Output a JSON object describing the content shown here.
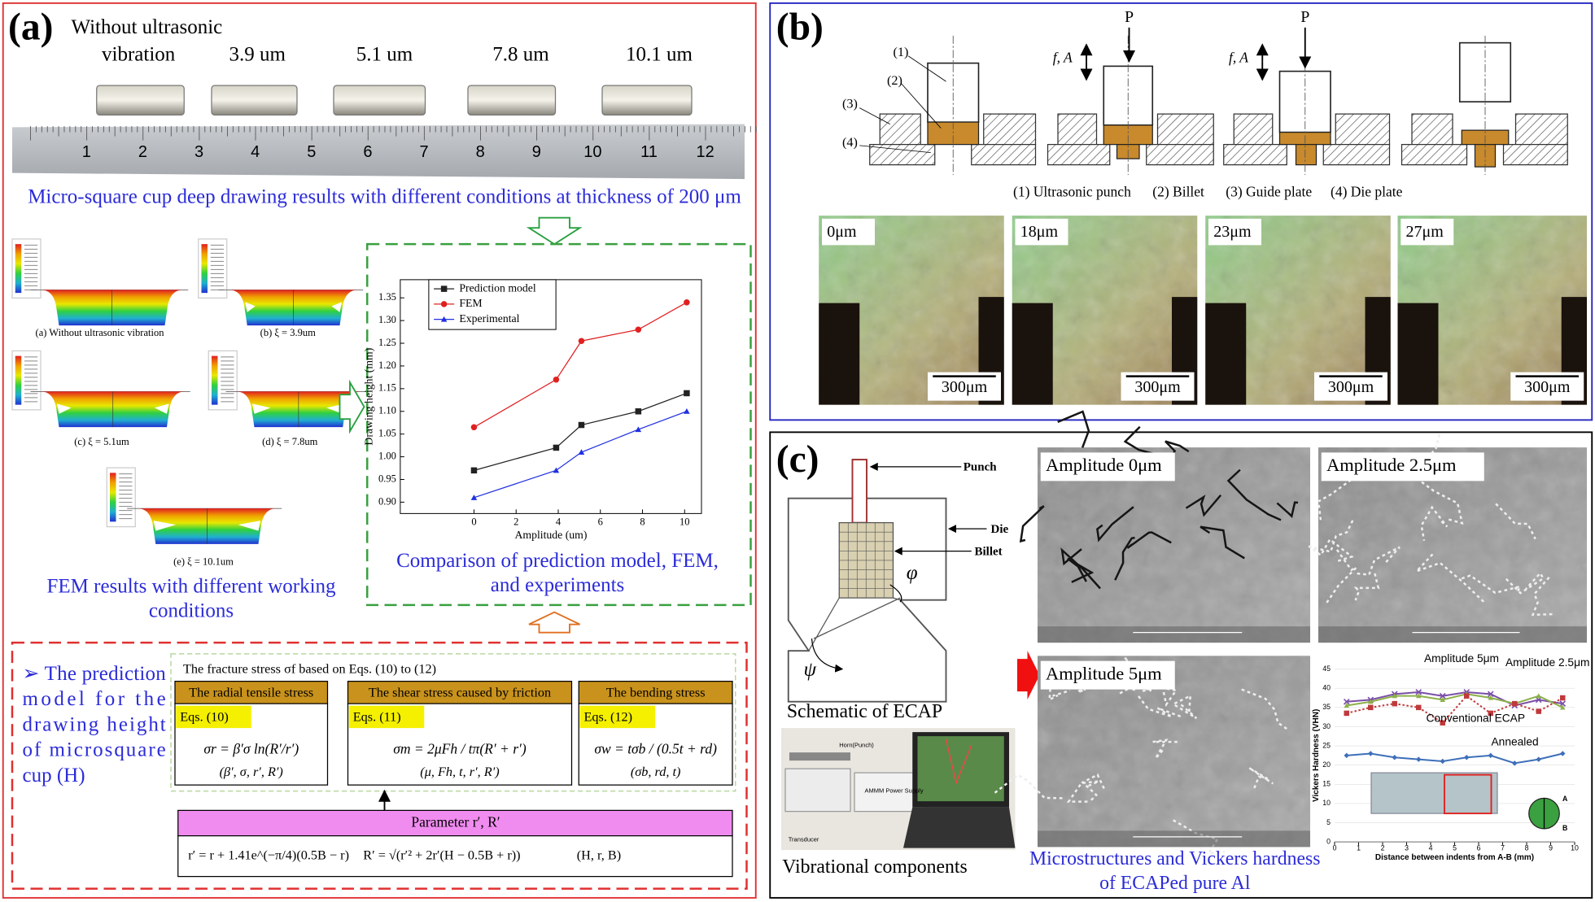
{
  "panel_a": {
    "label": "(a)",
    "sample_heading": [
      "Without ultrasonic",
      "vibration"
    ],
    "sample_labels": [
      "3.9 um",
      "5.1 um",
      "7.8 um",
      "10.1 um"
    ],
    "ruler_numbers": [
      1,
      2,
      3,
      4,
      5,
      6,
      7,
      8,
      9,
      10,
      11,
      12
    ],
    "photo_caption": "Micro-square cup deep drawing results with different conditions at thickness of 200 μm",
    "fem_captions": [
      "(a) Without ultrasonic vibration",
      "(b)  ξ = 3.9um",
      "(c)  ξ = 5.1um",
      "(d)  ξ = 7.8um",
      "(e)  ξ = 10.1um"
    ],
    "fem_caption": [
      "FEM results with different working",
      "conditions"
    ],
    "chart_caption": [
      "Comparison of prediction model, FEM,",
      "and experiments"
    ],
    "model": {
      "intro": [
        "➢ The prediction",
        "model for the",
        "drawing height",
        "of microsquare",
        "cup (H)"
      ],
      "fracture_note": "The fracture stress σf based on Eqs. (10) to (12)",
      "boxes": [
        {
          "title": "The radial tensile stress",
          "eq": "Eqs. (10)",
          "formula": "σr = β′σ ln(R′/r′)",
          "params": "(β′, σ, r′, R′)"
        },
        {
          "title": "The shear stress caused by friction",
          "eq": "Eqs. (11)",
          "formula": "σm = 2μFh / tπ(R′ + r′)",
          "params": "(μ, Fh, t, r′, R′)"
        },
        {
          "title": "The bending stress",
          "eq": "Eqs. (12)",
          "formula": "σw = tσb / (0.5t + rd)",
          "params": "(σb, rd, t)"
        }
      ],
      "parameter_title": "Parameter  r′, R′",
      "parameter_r": "r′ = r + 1.41e^(−π/4)(0.5B − r)",
      "parameter_R": "R′ = √(r′² + 2r′(H − 0.5B + r))",
      "parameter_vars": "(H, r, B)"
    }
  },
  "panel_b": {
    "label": "(b)",
    "part_numbers": [
      "(1)",
      "(2)",
      "(3)",
      "(4)"
    ],
    "load": "P",
    "vibration": "f, A",
    "legend": [
      "(1) Ultrasonic punch",
      "(2) Billet",
      "(3) Guide plate",
      "(4) Die plate"
    ],
    "micrograph_labels": [
      "0μm",
      "18μm",
      "23μm",
      "27μm"
    ],
    "scale_bar": "300μm"
  },
  "panel_c": {
    "label": "(c)",
    "schematic_labels": {
      "punch": "Punch",
      "die": "Die",
      "billet": "Billet",
      "phi": "φ",
      "psi": "ψ"
    },
    "schematic_caption": "Schematic of ECAP",
    "equipment_labels": [
      "Horn(Punch)",
      "AMMM Power Supply",
      "Transducer"
    ],
    "equipment_caption": "Vibrational components",
    "sem_labels": [
      "Amplitude 0μm",
      "Amplitude 2.5μm",
      "Amplitude 5μm"
    ],
    "specimen_ends": [
      "A",
      "B"
    ],
    "caption": [
      "Microstructures and Vickers hardness",
      "of ECAPed pure Al"
    ]
  },
  "chart_data": [
    {
      "type": "line",
      "x_label": "Amplitude (um)",
      "y_label": "Drawing height (mm)",
      "x": [
        0,
        3.9,
        5.1,
        7.8,
        10.1
      ],
      "series": [
        {
          "name": "Prediction model",
          "color": "#222222",
          "marker": "square",
          "values": [
            0.97,
            1.02,
            1.07,
            1.1,
            1.14
          ]
        },
        {
          "name": "FEM",
          "color": "#e02020",
          "marker": "circle",
          "values": [
            1.065,
            1.17,
            1.255,
            1.28,
            1.34
          ]
        },
        {
          "name": "Experimental",
          "color": "#2030e0",
          "marker": "triangle",
          "values": [
            0.91,
            0.97,
            1.01,
            1.06,
            1.1
          ]
        }
      ],
      "xlim": [
        -3.5,
        10.8
      ],
      "ylim": [
        0.875,
        1.39
      ],
      "xticks": [
        0,
        2,
        4,
        6,
        8,
        10
      ],
      "yticks": [
        {
          "value": 0.9,
          "label": "0.90"
        },
        0.95,
        {
          "value": 1.0,
          "label": "1.00"
        },
        1.05,
        {
          "value": 1.1,
          "label": "1.10"
        },
        1.15,
        {
          "value": 1.2,
          "label": "1.20"
        },
        1.25,
        {
          "value": 1.3,
          "label": "1.30"
        },
        1.35
      ],
      "grid": false,
      "legend": "top-left"
    },
    {
      "type": "line",
      "x_label": "Distance between indents from A-B (mm)",
      "y_label": "Vickers Hardness (VHN)",
      "x": [
        0.5,
        1.5,
        2.5,
        3.5,
        4.5,
        5.5,
        6.5,
        7.5,
        8.5,
        9.5
      ],
      "series": [
        {
          "name": "Amplitude 5μm",
          "color": "#7a4ea8",
          "marker": "cross",
          "line_style": "solid",
          "values": [
            36.5,
            37,
            38.5,
            39,
            38,
            39,
            38.5,
            35.5,
            37,
            36
          ]
        },
        {
          "name": "Amplitude 2.5μm",
          "color": "#8db04a",
          "marker": "triangle",
          "line_style": "solid",
          "values": [
            35.5,
            36.5,
            38,
            38,
            37,
            38.5,
            37.5,
            36,
            38,
            35
          ]
        },
        {
          "name": "Conventional ECAP",
          "color": "#c0393b",
          "marker": "square",
          "line_style": "dotted",
          "values": [
            33.5,
            35,
            36,
            35,
            31,
            38,
            33.5,
            36,
            34,
            37.5
          ]
        },
        {
          "name": "Annealed",
          "color": "#3e6fb8",
          "marker": "diamond",
          "line_style": "solid",
          "values": [
            22.5,
            23,
            22,
            21.5,
            21,
            22,
            22.5,
            20.5,
            21.5,
            23
          ]
        }
      ],
      "xlim": [
        0,
        10
      ],
      "ylim": [
        0,
        45
      ],
      "xticks": [
        0,
        1,
        2,
        3,
        4,
        5,
        6,
        7,
        8,
        9,
        10
      ],
      "yticks": [
        0,
        5,
        10,
        15,
        20,
        25,
        30,
        35,
        40,
        45
      ],
      "grid": true,
      "legend": "inline"
    }
  ]
}
